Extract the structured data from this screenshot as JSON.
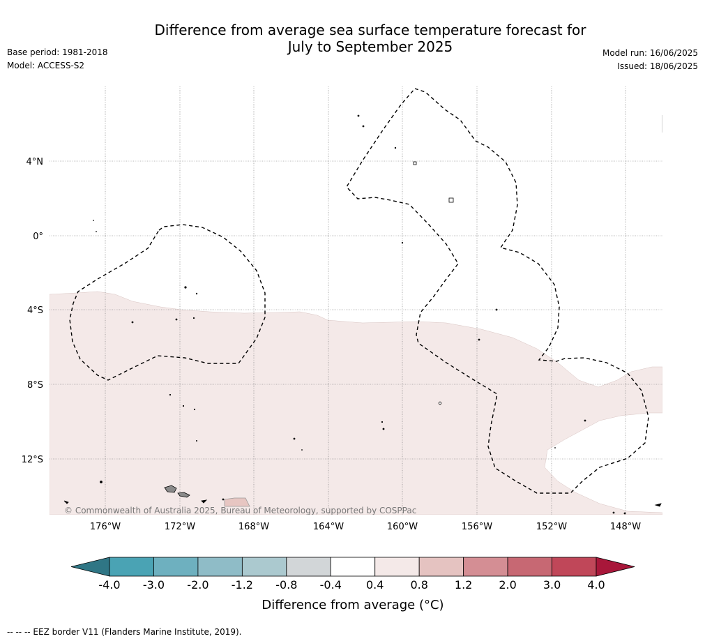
{
  "title": {
    "line1": "Difference from average sea surface temperature forecast for",
    "line2": "July to September 2025"
  },
  "meta": {
    "base_period": "Base period: 1981-2018",
    "model": "Model: ACCESS-S2",
    "model_run": "Model run: 16/06/2025",
    "issued": "Issued: 18/06/2025"
  },
  "map": {
    "lon_labels": [
      "176°W",
      "172°W",
      "168°W",
      "164°W",
      "160°W",
      "156°W",
      "152°W",
      "148°W"
    ],
    "lat_labels": [
      "4°N",
      "0°",
      "4°S",
      "8°S",
      "12°S"
    ],
    "copyright": "© Commonwealth of Australia 2025, Bureau of Meteorology, supported by COSPPac",
    "anomaly_fill_color": "#f4e9e8",
    "eez_line_style": "dashed"
  },
  "colorbar": {
    "ticks": [
      "-4.0",
      "-3.0",
      "-2.0",
      "-1.2",
      "-0.8",
      "-0.4",
      "0.4",
      "0.8",
      "1.2",
      "2.0",
      "3.0",
      "4.0"
    ],
    "colors": [
      "#2f7685",
      "#4aa3b4",
      "#6eb0bf",
      "#8fbcc7",
      "#abc9cf",
      "#d2d6d8",
      "#ffffff",
      "#f4e9e8",
      "#e5c3c1",
      "#d48e94",
      "#c76873",
      "#c04759",
      "#a8173a"
    ],
    "label": "Difference from average (°C)"
  },
  "footer": {
    "eez_note": "--  --  -- EEZ border V11 (Flanders Marine Institute, 2019)."
  }
}
